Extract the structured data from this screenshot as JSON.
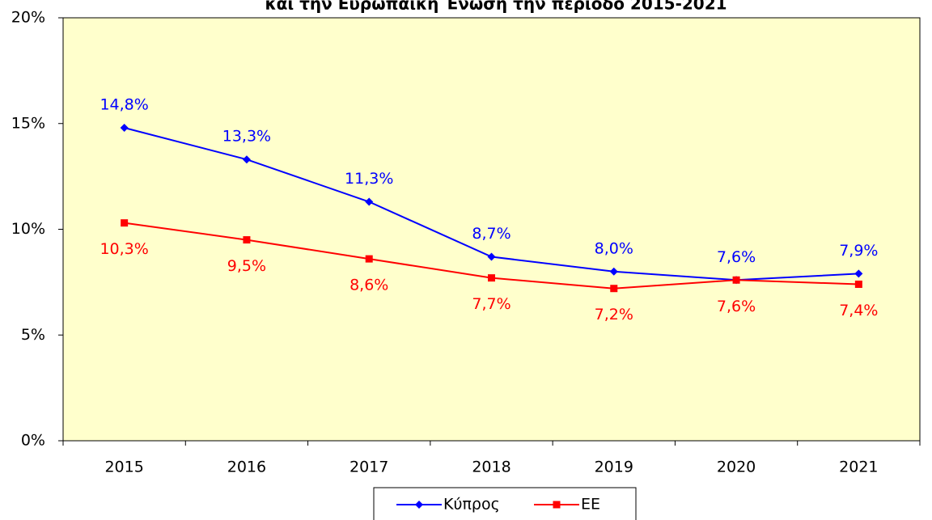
{
  "chart_data": {
    "type": "line",
    "title": "και την Ευρωπαϊκή Ένωση την περίοδο 2015-2021",
    "categories": [
      "2015",
      "2016",
      "2017",
      "2018",
      "2019",
      "2020",
      "2021"
    ],
    "series": [
      {
        "name": "Κύπρος",
        "color": "#0000ff",
        "marker": "diamond",
        "values": [
          14.8,
          13.3,
          11.3,
          8.7,
          8.0,
          7.6,
          7.9
        ],
        "value_labels": [
          "14,8%",
          "13,3%",
          "11,3%",
          "8,7%",
          "8,0%",
          "7,6%",
          "7,9%"
        ]
      },
      {
        "name": "ΕΕ",
        "color": "#ff0000",
        "marker": "square",
        "values": [
          10.3,
          9.5,
          8.6,
          7.7,
          7.2,
          7.6,
          7.4
        ],
        "value_labels": [
          "10,3%",
          "9,5%",
          "8,6%",
          "7,7%",
          "7,2%",
          "7,6%",
          "7,4%"
        ]
      }
    ],
    "ylim": [
      0,
      20
    ],
    "yticks": [
      {
        "value": 0,
        "label": "0%"
      },
      {
        "value": 5,
        "label": "5%"
      },
      {
        "value": 10,
        "label": "10%"
      },
      {
        "value": 15,
        "label": "15%"
      },
      {
        "value": 20,
        "label": "20%"
      }
    ],
    "grid": false,
    "legend": "bottom"
  }
}
